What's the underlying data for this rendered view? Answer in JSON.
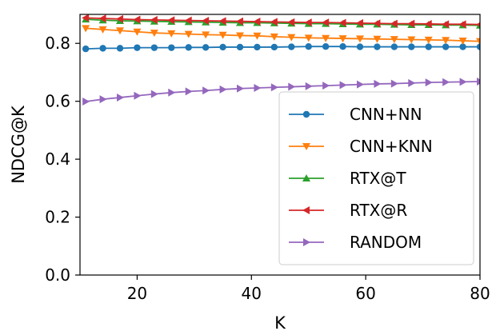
{
  "chart_data": {
    "type": "line",
    "title": "",
    "xlabel": "K",
    "ylabel": "NDCG@K",
    "xlim": [
      10,
      80
    ],
    "ylim": [
      0.0,
      0.9
    ],
    "xticks": [
      "20",
      "40",
      "60",
      "80"
    ],
    "yticks": [
      "0.0",
      "0.2",
      "0.4",
      "0.6",
      "0.8"
    ],
    "grid": false,
    "legend_position": "lower-right",
    "x": [
      11,
      14,
      17,
      20,
      23,
      26,
      29,
      32,
      35,
      38,
      41,
      44,
      47,
      50,
      53,
      56,
      59,
      62,
      65,
      68,
      71,
      74,
      77,
      80
    ],
    "series": [
      {
        "name": "CNN+NN",
        "color": "#1f77b4",
        "marker": "circle",
        "values": [
          0.781,
          0.783,
          0.783,
          0.785,
          0.785,
          0.785,
          0.786,
          0.786,
          0.787,
          0.787,
          0.787,
          0.787,
          0.788,
          0.789,
          0.789,
          0.789,
          0.788,
          0.788,
          0.788,
          0.788,
          0.788,
          0.788,
          0.788,
          0.788
        ]
      },
      {
        "name": "CNN+KNN",
        "color": "#ff7f0e",
        "marker": "triangle-down",
        "values": [
          0.852,
          0.848,
          0.844,
          0.84,
          0.836,
          0.834,
          0.832,
          0.83,
          0.829,
          0.827,
          0.826,
          0.823,
          0.821,
          0.819,
          0.818,
          0.817,
          0.816,
          0.815,
          0.814,
          0.813,
          0.812,
          0.811,
          0.809,
          0.807
        ]
      },
      {
        "name": "RTX@T",
        "color": "#2ca02c",
        "marker": "triangle-up",
        "values": [
          0.883,
          0.88,
          0.878,
          0.877,
          0.876,
          0.875,
          0.874,
          0.873,
          0.872,
          0.871,
          0.871,
          0.87,
          0.869,
          0.868,
          0.868,
          0.867,
          0.866,
          0.866,
          0.865,
          0.864,
          0.864,
          0.863,
          0.863,
          0.862
        ]
      },
      {
        "name": "RTX@R",
        "color": "#d62728",
        "marker": "triangle-left",
        "values": [
          0.888,
          0.886,
          0.884,
          0.882,
          0.881,
          0.88,
          0.879,
          0.878,
          0.877,
          0.876,
          0.875,
          0.874,
          0.873,
          0.872,
          0.872,
          0.871,
          0.87,
          0.869,
          0.868,
          0.868,
          0.867,
          0.866,
          0.866,
          0.865
        ]
      },
      {
        "name": "RANDOM",
        "color": "#9467bd",
        "marker": "triangle-right",
        "values": [
          0.599,
          0.607,
          0.613,
          0.619,
          0.625,
          0.63,
          0.634,
          0.637,
          0.641,
          0.644,
          0.646,
          0.648,
          0.65,
          0.652,
          0.654,
          0.656,
          0.658,
          0.66,
          0.661,
          0.663,
          0.665,
          0.666,
          0.667,
          0.668
        ]
      }
    ]
  }
}
